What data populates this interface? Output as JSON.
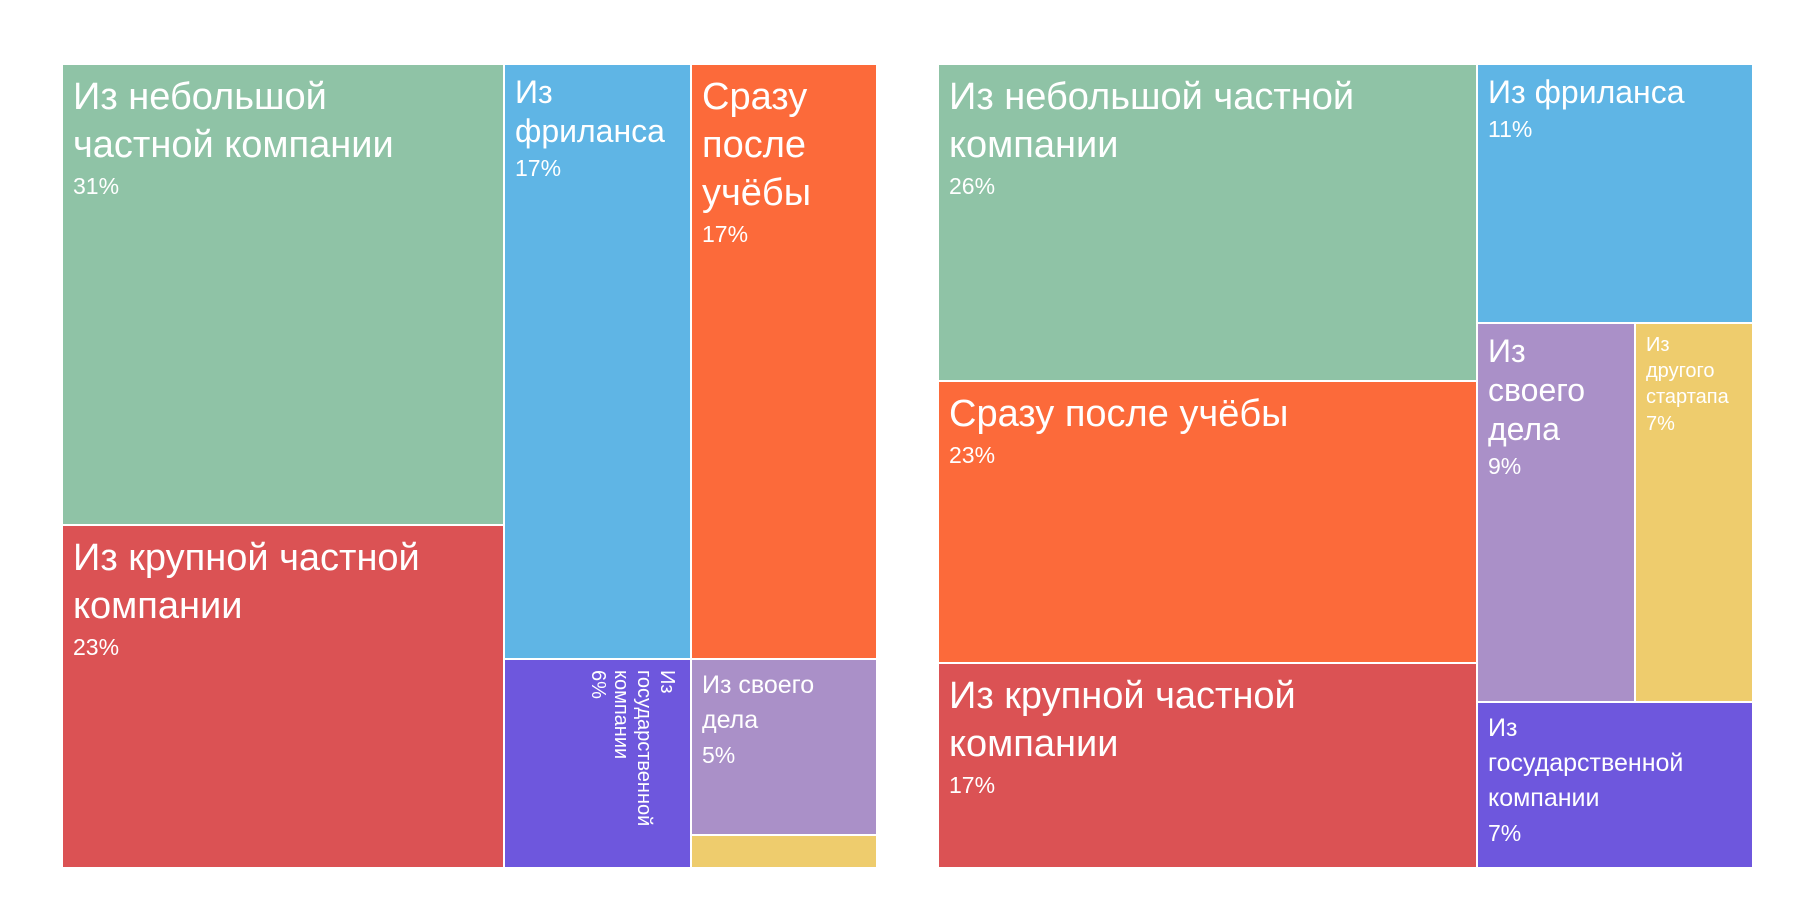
{
  "colors": {
    "green": "#8fc3a6",
    "red": "#db5254",
    "blue": "#5fb5e5",
    "orange": "#fc6a3a",
    "purple": "#6e57dd",
    "lilac": "#aa90c8",
    "yellow": "#eecc6d"
  },
  "chart_data": [
    {
      "type": "treemap",
      "title": "",
      "items": [
        {
          "name": "Из небольшой частной компании",
          "value": 31,
          "label": "31%",
          "color": "green"
        },
        {
          "name": "Из крупной частной компании",
          "value": 23,
          "label": "23%",
          "color": "red"
        },
        {
          "name": "Из фриланса",
          "value": 17,
          "label": "17%",
          "color": "blue"
        },
        {
          "name": "Из государственной компании",
          "value": 6,
          "label": "6%",
          "color": "purple"
        },
        {
          "name": "Сразу после учёбы",
          "value": 17,
          "label": "17%",
          "color": "orange"
        },
        {
          "name": "Из своего дела",
          "value": 5,
          "label": "5%",
          "color": "lilac"
        },
        {
          "name": "",
          "value": 1,
          "label": "",
          "color": "yellow"
        }
      ]
    },
    {
      "type": "treemap",
      "title": "",
      "items": [
        {
          "name": "Из небольшой частной компании",
          "value": 26,
          "label": "26%",
          "color": "green"
        },
        {
          "name": "Сразу после учёбы",
          "value": 23,
          "label": "23%",
          "color": "orange"
        },
        {
          "name": "Из крупной частной компании",
          "value": 17,
          "label": "17%",
          "color": "red"
        },
        {
          "name": "Из фриланса",
          "value": 11,
          "label": "11%",
          "color": "blue"
        },
        {
          "name": "Из своего дела",
          "value": 9,
          "label": "9%",
          "color": "lilac"
        },
        {
          "name": "Из другого стартапа",
          "value": 7,
          "label": "7%",
          "color": "yellow"
        },
        {
          "name": "Из государственной компании",
          "value": 7,
          "label": "7%",
          "color": "purple"
        }
      ]
    }
  ]
}
